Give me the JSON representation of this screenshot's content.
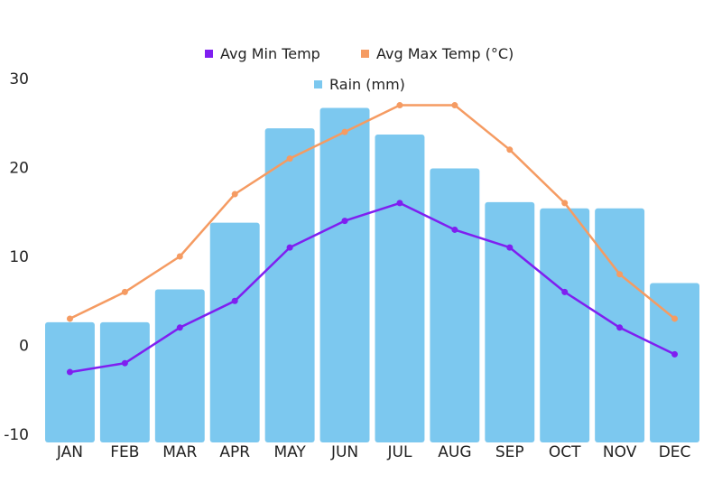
{
  "chart_data": {
    "type": "bar",
    "title": "",
    "xlabel": "",
    "ylabel": "",
    "ylim": [
      -10,
      30
    ],
    "yticks": [
      30,
      20,
      10,
      0,
      -10
    ],
    "categories": [
      "JAN",
      "FEB",
      "MAR",
      "APR",
      "MAY",
      "JUN",
      "JUL",
      "AUG",
      "SEP",
      "OCT",
      "NOV",
      "DEC"
    ],
    "series": [
      {
        "name": "Rain (mm)",
        "kind": "bar",
        "color": "#7cc8ef",
        "values": [
          2.6,
          2.6,
          6.3,
          13.8,
          24.4,
          26.7,
          23.7,
          19.9,
          16.1,
          15.4,
          15.4,
          7.0
        ]
      },
      {
        "name": "Avg Min Temp",
        "kind": "line",
        "color": "#7f1ff0",
        "values": [
          -3,
          -2,
          2,
          5,
          11,
          14,
          16,
          13,
          11,
          6,
          2,
          -1
        ]
      },
      {
        "name": "Avg Max Temp (°C)",
        "kind": "line",
        "color": "#f59b62",
        "values": [
          3,
          6,
          10,
          17,
          21,
          24,
          27,
          27,
          22,
          16,
          8,
          3
        ]
      }
    ],
    "legend": {
      "placement": "top",
      "row1": [
        "Avg Min Temp",
        "Avg Max Temp (°C)"
      ],
      "row2": [
        "Rain (mm)"
      ]
    }
  }
}
